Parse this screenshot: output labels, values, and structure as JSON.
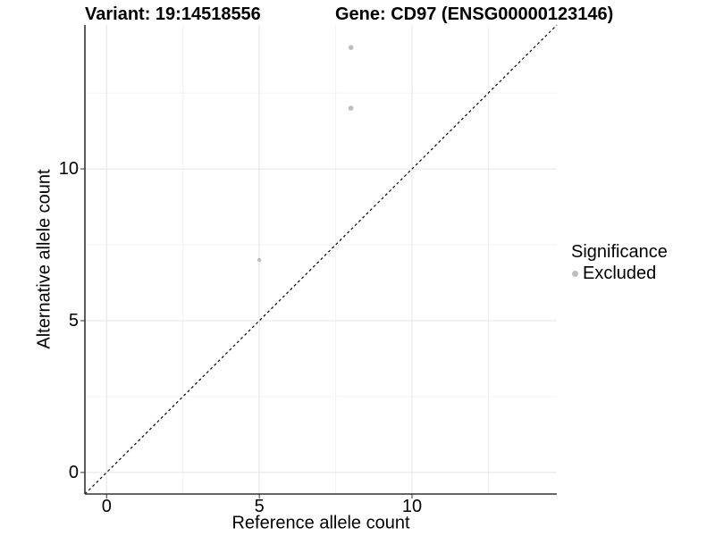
{
  "chart_data": {
    "type": "scatter",
    "titles": {
      "left": "Variant: 19:14518556",
      "right": "Gene: CD97 (ENSG00000123146)"
    },
    "xlabel": "Reference allele count",
    "ylabel": "Alternative allele count",
    "xlim": [
      -0.71,
      14.74
    ],
    "ylim": [
      -0.71,
      14.74
    ],
    "x_major_ticks": [
      0,
      5,
      10
    ],
    "y_major_ticks": [
      0,
      5,
      10
    ],
    "x_minor_ticks": [
      2.5,
      7.5,
      12.5
    ],
    "y_minor_ticks": [
      2.5,
      7.5,
      12.5
    ],
    "grid": {
      "major": true,
      "minor": true
    },
    "series": [
      {
        "name": "Excluded",
        "color": "#bebebe",
        "points": [
          {
            "x": 8,
            "y": 14,
            "r": 2.8
          },
          {
            "x": 8,
            "y": 12,
            "r": 2.8
          },
          {
            "x": 5,
            "y": 7,
            "r": 2.2
          }
        ]
      }
    ],
    "identity_line": {
      "style": "dashed",
      "from": [
        -0.71,
        -0.71
      ],
      "to": [
        14.74,
        14.74
      ],
      "color": "#000000"
    },
    "legend": {
      "title": "Significance",
      "position": "right",
      "items": [
        {
          "label": "Excluded",
          "color": "#bebebe"
        }
      ]
    },
    "colors": {
      "grid_major": "#e4e4e4",
      "grid_minor": "#f2f2f2",
      "axis": "#333333",
      "text": "#000000",
      "background": "#ffffff"
    }
  }
}
